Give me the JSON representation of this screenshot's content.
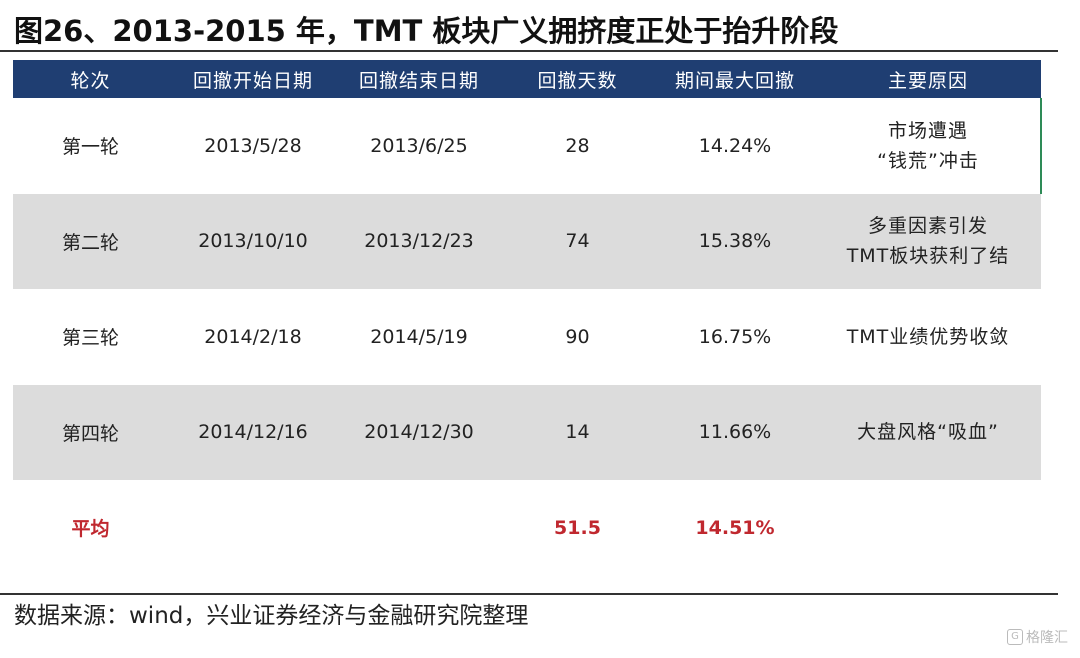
{
  "title": "图26、2013-2015 年，TMT 板块广义拥挤度正处于抬升阶段",
  "table": {
    "headers": [
      "轮次",
      "回撤开始日期",
      "回撤结束日期",
      "回撤天数",
      "期间最大回撤",
      "主要原因"
    ],
    "rows": [
      {
        "round": "第一轮",
        "start": "2013/5/28",
        "end": "2013/6/25",
        "days": "28",
        "max_drawdown": "14.24%",
        "reason_line1": "市场遭遇",
        "reason_line2": "“钱荒”冲击"
      },
      {
        "round": "第二轮",
        "start": "2013/10/10",
        "end": "2013/12/23",
        "days": "74",
        "max_drawdown": "15.38%",
        "reason_line1": "多重因素引发",
        "reason_line2": "TMT板块获利了结"
      },
      {
        "round": "第三轮",
        "start": "2014/2/18",
        "end": "2014/5/19",
        "days": "90",
        "max_drawdown": "16.75%",
        "reason_line1": "TMT业绩优势收敛",
        "reason_line2": ""
      },
      {
        "round": "第四轮",
        "start": "2014/12/16",
        "end": "2014/12/30",
        "days": "14",
        "max_drawdown": "11.66%",
        "reason_line1": "大盘风格“吸血”",
        "reason_line2": ""
      }
    ],
    "average": {
      "label": "平均",
      "days": "51.5",
      "max_drawdown": "14.51%"
    }
  },
  "source": "数据来源：wind，兴业证券经济与金融研究院整理",
  "watermark": "格隆汇",
  "colors": {
    "header_bg": "#1f3e72",
    "shaded_row": "#dcdcdc",
    "average_text": "#c0282f"
  }
}
